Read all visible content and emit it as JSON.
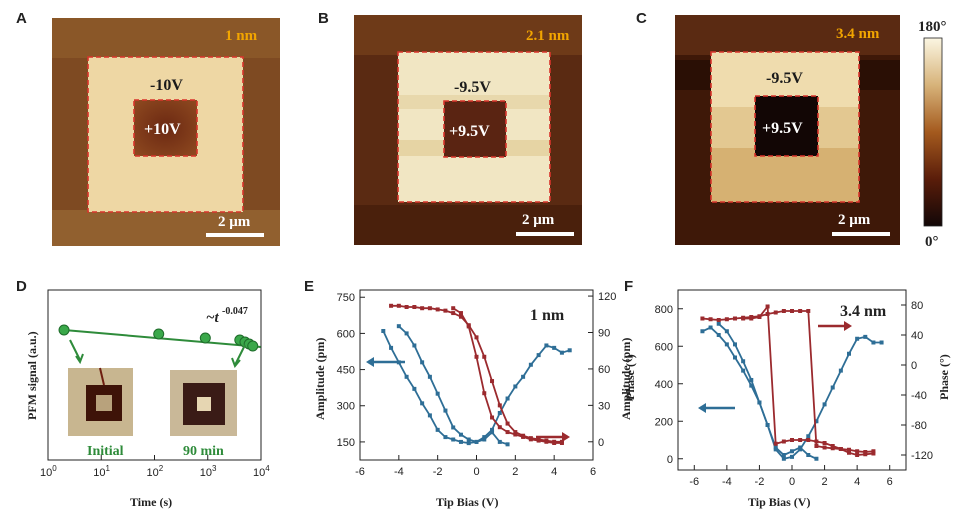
{
  "panels": {
    "A": {
      "label": "A",
      "thickness": "1 nm",
      "outer_voltage": "-10V",
      "inner_voltage": "+10V",
      "scale": "2 μm"
    },
    "B": {
      "label": "B",
      "thickness": "2.1 nm",
      "outer_voltage": "-9.5V",
      "inner_voltage": "+9.5V",
      "scale": "2 μm"
    },
    "C": {
      "label": "C",
      "thickness": "3.4 nm",
      "outer_voltage": "-9.5V",
      "inner_voltage": "+9.5V",
      "scale": "2 μm"
    },
    "D": {
      "label": "D",
      "ylabel": "PFM signal (a.u.)",
      "xlabel": "Time (s)",
      "fit_text": "~t",
      "fit_exp": "-0.047",
      "inset_initial": "Initial",
      "inset_final": "90 min"
    },
    "E": {
      "label": "E",
      "thickness": "1 nm",
      "ylabel": "Amplitude (pm)",
      "y2label": "Phase (°)",
      "xlabel": "Tip Bias (V)"
    },
    "F": {
      "label": "F",
      "thickness": "3.4 nm",
      "ylabel": "Amplitude (pm)",
      "y2label": "Phase (°)",
      "xlabel": "Tip Bias (V)"
    }
  },
  "colorbar": {
    "max": "180°",
    "min": "0°"
  },
  "colors": {
    "amplitude": "#2e6e96",
    "phase": "#9b2a2e",
    "retention": "#2e8b3a",
    "dashed": "#d9342b",
    "thickness_text": "#f2a500"
  },
  "chart_data": [
    {
      "type": "scatter",
      "id": "D",
      "xlabel": "Time (s)",
      "ylabel": "PFM signal (a.u.)",
      "xscale": "log",
      "xlim": [
        1,
        10000
      ],
      "xticks": [
        "10^0",
        "10^1",
        "10^2",
        "10^3",
        "10^4"
      ],
      "x": [
        2,
        120,
        900,
        4000,
        5000,
        6000,
        7000
      ],
      "y": [
        1.0,
        0.98,
        0.96,
        0.95,
        0.94,
        0.93,
        0.92
      ],
      "fit": "power law ~t^-0.047"
    },
    {
      "type": "line",
      "id": "E",
      "xlabel": "Tip Bias (V)",
      "ylabel": "Amplitude (pm)",
      "y2label": "Phase (°)",
      "xlim": [
        -6,
        6
      ],
      "ylim": [
        75,
        780
      ],
      "y2lim": [
        -15,
        125
      ],
      "xticks": [
        -6,
        -4,
        -2,
        0,
        2,
        4,
        6
      ],
      "yticks": [
        150,
        300,
        450,
        600,
        750
      ],
      "y2ticks": [
        0,
        30,
        60,
        90,
        120
      ],
      "series": [
        {
          "axis": "left",
          "x": [
            -4.8,
            -4.4,
            -4.0,
            -3.6,
            -3.2,
            -2.8,
            -2.4,
            -2.0,
            -1.6,
            -1.2,
            -0.8,
            -0.4,
            0,
            0.4,
            0.8,
            1.2,
            1.6,
            2.0,
            2.4,
            2.8,
            3.2,
            3.6,
            4.0,
            4.4,
            4.8
          ],
          "values": [
            610,
            540,
            480,
            420,
            370,
            310,
            260,
            200,
            170,
            160,
            150,
            145,
            150,
            170,
            200,
            270,
            330,
            380,
            420,
            470,
            510,
            550,
            540,
            520,
            530
          ]
        },
        {
          "axis": "left",
          "x": [
            -4.0,
            -3.6,
            -3.2,
            -2.8,
            -2.4,
            -2.0,
            -1.6,
            -1.2,
            -0.8,
            -0.4,
            0,
            0.4,
            0.8,
            1.2,
            1.6
          ],
          "values": [
            630,
            600,
            550,
            480,
            420,
            350,
            280,
            210,
            180,
            160,
            150,
            160,
            190,
            150,
            140
          ]
        },
        {
          "axis": "right",
          "x": [
            -4.4,
            -4.0,
            -3.6,
            -3.2,
            -2.8,
            -2.4,
            -2.0,
            -1.6,
            -1.2,
            -0.8,
            -0.4,
            0,
            0.4,
            0.8,
            1.2,
            1.6,
            2.0,
            2.4,
            2.8,
            3.2,
            3.6,
            4.0,
            4.4
          ],
          "values": [
            112,
            112,
            111,
            111,
            110,
            110,
            109,
            108,
            106,
            103,
            96,
            86,
            70,
            50,
            30,
            15,
            8,
            5,
            3,
            2,
            1,
            0,
            0
          ]
        },
        {
          "axis": "right",
          "x": [
            4.4,
            4.0,
            3.6,
            3.2,
            2.8,
            2.4,
            2.0,
            1.6,
            1.2,
            0.8,
            0.4,
            0,
            -0.4,
            -0.8,
            -1.2
          ],
          "values": [
            -1,
            -1,
            0,
            1,
            2,
            4,
            6,
            8,
            12,
            20,
            40,
            70,
            95,
            106,
            110
          ]
        }
      ]
    },
    {
      "type": "line",
      "id": "F",
      "xlabel": "Tip Bias (V)",
      "ylabel": "Amplitude (pm)",
      "y2label": "Phase (°)",
      "xlim": [
        -7,
        7
      ],
      "ylim": [
        -60,
        900
      ],
      "y2lim": [
        -140,
        100
      ],
      "xticks": [
        -6,
        -4,
        -2,
        0,
        2,
        4,
        6
      ],
      "yticks": [
        0,
        200,
        400,
        600,
        800
      ],
      "y2ticks": [
        -120,
        -80,
        -40,
        0,
        40,
        80
      ],
      "series": [
        {
          "axis": "left",
          "x": [
            -5.5,
            -5.0,
            -4.5,
            -4.0,
            -3.5,
            -3.0,
            -2.5,
            -2.0,
            -1.5,
            -1.0,
            -0.5,
            0,
            0.5,
            1.0,
            1.5,
            2.0,
            2.5,
            3.0,
            3.5,
            4.0,
            4.5,
            5.0,
            5.5
          ],
          "values": [
            680,
            700,
            660,
            610,
            540,
            470,
            390,
            300,
            180,
            50,
            0,
            10,
            50,
            120,
            200,
            290,
            380,
            470,
            560,
            640,
            650,
            620,
            620
          ]
        },
        {
          "axis": "left",
          "x": [
            -4.5,
            -4.0,
            -3.5,
            -3.0,
            -2.5,
            -2.0,
            -1.5,
            -1.0,
            -0.5,
            0,
            0.5,
            1.0,
            1.5
          ],
          "values": [
            720,
            680,
            610,
            520,
            420,
            300,
            180,
            60,
            20,
            40,
            60,
            20,
            0
          ]
        },
        {
          "axis": "right",
          "x": [
            -5.5,
            -5.0,
            -4.5,
            -4.0,
            -3.5,
            -3.0,
            -2.5,
            -2.0,
            -1.5,
            -1.0,
            -0.5,
            0,
            0.5,
            1.0,
            1.5,
            2.0,
            2.5,
            3.0,
            3.5,
            4.0,
            4.5,
            5.0
          ],
          "values": [
            62,
            61,
            60,
            61,
            62,
            63,
            64,
            65,
            68,
            70,
            72,
            72,
            72,
            72,
            -108,
            -110,
            -111,
            -112,
            -113,
            -115,
            -116,
            -115
          ]
        },
        {
          "axis": "right",
          "x": [
            5.0,
            4.5,
            4.0,
            3.5,
            3.0,
            2.5,
            2.0,
            1.5,
            1.0,
            0.5,
            0,
            -0.5,
            -1.0,
            -1.5,
            -2.0,
            -2.5,
            -3.0
          ],
          "values": [
            -118,
            -119,
            -120,
            -117,
            -112,
            -108,
            -104,
            -102,
            -100,
            -100,
            -100,
            -102,
            -105,
            78,
            64,
            62,
            62
          ]
        }
      ]
    }
  ]
}
